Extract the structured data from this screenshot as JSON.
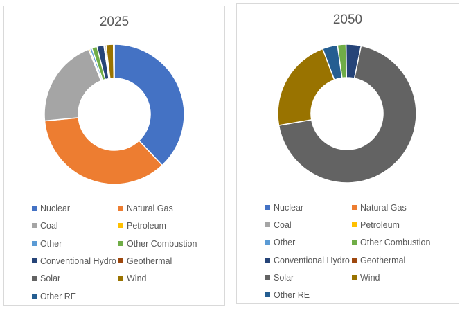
{
  "chart_data": [
    {
      "type": "pie",
      "subtype": "donut",
      "title": "2025",
      "unit": "percent share (estimated)",
      "categories": [
        "Nuclear",
        "Natural Gas",
        "Coal",
        "Petroleum",
        "Other",
        "Other Combustion",
        "Conventional Hydro",
        "Geothermal",
        "Solar",
        "Wind",
        "Other RE"
      ],
      "values": [
        38,
        35.5,
        20.5,
        0.3,
        0.5,
        1.2,
        1.6,
        0.2,
        0.3,
        1.7,
        0.2
      ],
      "legend_position": "bottom"
    },
    {
      "type": "pie",
      "subtype": "donut",
      "title": "2050",
      "unit": "percent share (estimated)",
      "categories": [
        "Nuclear",
        "Natural Gas",
        "Coal",
        "Petroleum",
        "Other",
        "Other Combustion",
        "Conventional Hydro",
        "Geothermal",
        "Solar",
        "Wind",
        "Other RE"
      ],
      "values": [
        0,
        0,
        0,
        0,
        0,
        2,
        3.5,
        0,
        69,
        22,
        3.5
      ],
      "legend_position": "bottom"
    }
  ],
  "colors": [
    "#4472C4",
    "#ED7D31",
    "#A5A5A5",
    "#FFC000",
    "#5B9BD5",
    "#70AD47",
    "#264478",
    "#9E480E",
    "#636363",
    "#997300",
    "#255E91"
  ]
}
